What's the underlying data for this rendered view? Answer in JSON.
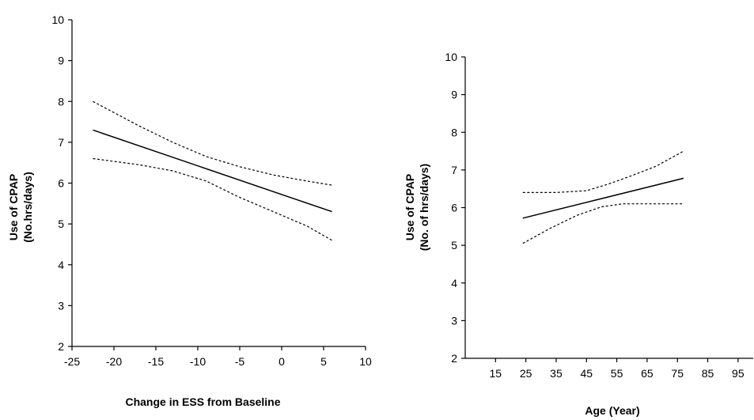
{
  "chart_data": [
    {
      "type": "line",
      "xlabel": "Change in ESS from Baseline",
      "ylabel_lines": [
        "Use of CPAP",
        "(No.hrs/days)"
      ],
      "xlim": [
        -25,
        10
      ],
      "ylim": [
        2,
        10
      ],
      "xticks": [
        "-25",
        "-20",
        "-15",
        "-10",
        "-5",
        "0",
        "5",
        "10"
      ],
      "yticks": [
        "2",
        "3",
        "4",
        "5",
        "6",
        "7",
        "8",
        "9",
        "10"
      ],
      "series": [
        {
          "style": "solid",
          "x": [
            -22.5,
            6
          ],
          "y": [
            7.3,
            5.3
          ]
        },
        {
          "style": "dashed",
          "x": [
            -22.5,
            -17,
            -13,
            -9,
            -5,
            -1,
            3,
            6
          ],
          "y": [
            8.0,
            7.4,
            7.0,
            6.65,
            6.4,
            6.2,
            6.05,
            5.95
          ]
        },
        {
          "style": "dashed",
          "x": [
            -22.5,
            -17,
            -13,
            -9,
            -5,
            -1,
            3,
            6
          ],
          "y": [
            6.6,
            6.45,
            6.3,
            6.05,
            5.65,
            5.3,
            4.95,
            4.6
          ]
        }
      ]
    },
    {
      "type": "line",
      "xlabel": "Age (Year)",
      "ylabel_lines": [
        "Use of CPAP",
        "(No. of hrs/days)"
      ],
      "xlim": [
        5,
        100
      ],
      "ylim": [
        2,
        10
      ],
      "xticks": [
        "15",
        "25",
        "35",
        "45",
        "55",
        "65",
        "75",
        "85",
        "95"
      ],
      "yticks": [
        "2",
        "3",
        "4",
        "5",
        "6",
        "7",
        "8",
        "9",
        "10"
      ],
      "series": [
        {
          "style": "solid",
          "x": [
            24,
            77
          ],
          "y": [
            5.72,
            6.78
          ]
        },
        {
          "style": "dashed",
          "x": [
            24,
            35,
            45,
            52,
            60,
            68,
            77
          ],
          "y": [
            6.4,
            6.4,
            6.45,
            6.62,
            6.85,
            7.1,
            7.5
          ]
        },
        {
          "style": "dashed",
          "x": [
            24,
            33,
            42,
            50,
            57,
            66,
            77
          ],
          "y": [
            5.05,
            5.45,
            5.8,
            6.02,
            6.1,
            6.1,
            6.1
          ]
        }
      ]
    }
  ]
}
